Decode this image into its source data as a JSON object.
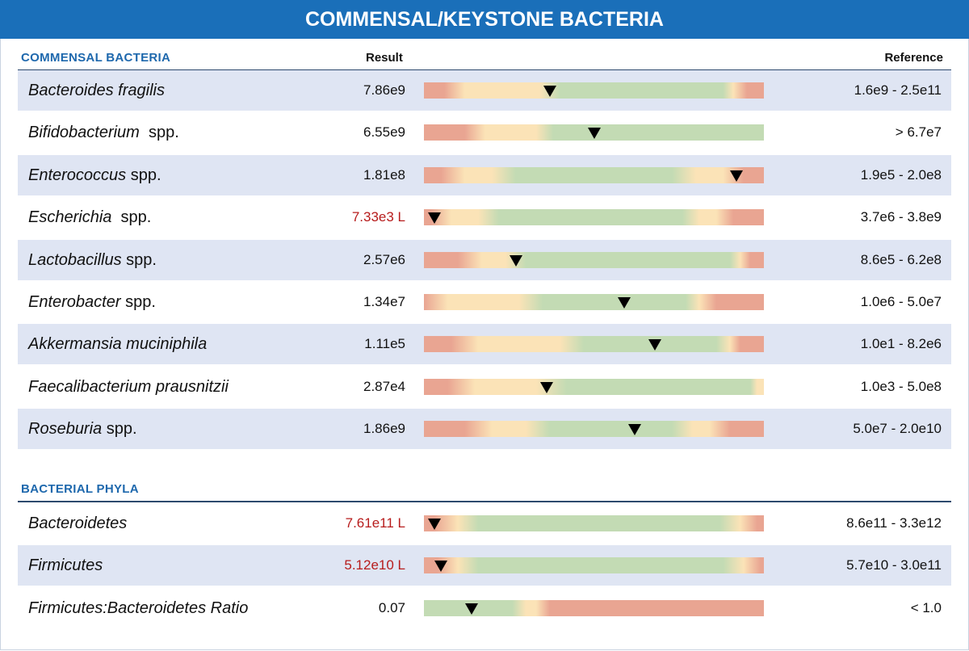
{
  "title": "COMMENSAL/KEYSTONE BACTERIA",
  "colors": {
    "red": "#e9a592",
    "yellow": "#fbe3b7",
    "green": "#c3dbb4",
    "header_blue": "#1a6fb9",
    "low_text": "#b71c1c"
  },
  "sections": [
    {
      "title": "COMMENSAL BACTERIA",
      "result_header": "Result",
      "reference_header": "Reference",
      "rows": [
        {
          "name_italic": "Bacteroides fragilis",
          "name_rest": "",
          "result": "7.86e9",
          "low": false,
          "reference": "1.6e9 - 2.5e11",
          "marker": 0.37,
          "stops": [
            [
              "red",
              0
            ],
            [
              "red",
              0.06
            ],
            [
              "yellow",
              0.12
            ],
            [
              "yellow",
              0.34
            ],
            [
              "green",
              0.4
            ],
            [
              "green",
              0.88
            ],
            [
              "yellow",
              0.91
            ],
            [
              "red",
              0.95
            ],
            [
              "red",
              1
            ]
          ]
        },
        {
          "name_italic": "Bifidobacterium",
          "name_rest": "  spp.",
          "result": "6.55e9",
          "low": false,
          "reference": "> 6.7e7",
          "marker": 0.5,
          "stops": [
            [
              "red",
              0
            ],
            [
              "red",
              0.12
            ],
            [
              "yellow",
              0.18
            ],
            [
              "yellow",
              0.33
            ],
            [
              "green",
              0.38
            ],
            [
              "green",
              1
            ]
          ]
        },
        {
          "name_italic": "Enterococcus",
          "name_rest": " spp.",
          "result": "1.81e8",
          "low": false,
          "reference": "1.9e5 - 2.0e8",
          "marker": 0.92,
          "stops": [
            [
              "red",
              0
            ],
            [
              "red",
              0.05
            ],
            [
              "yellow",
              0.12
            ],
            [
              "yellow",
              0.2
            ],
            [
              "green",
              0.27
            ],
            [
              "green",
              0.73
            ],
            [
              "yellow",
              0.8
            ],
            [
              "yellow",
              0.88
            ],
            [
              "red",
              0.94
            ],
            [
              "red",
              1
            ]
          ]
        },
        {
          "name_italic": "Escherichia",
          "name_rest": "  spp.",
          "result": "7.33e3 L",
          "low": true,
          "reference": "3.7e6 - 3.8e9",
          "marker": 0.03,
          "stops": [
            [
              "red",
              0
            ],
            [
              "red",
              0.02
            ],
            [
              "yellow",
              0.08
            ],
            [
              "yellow",
              0.16
            ],
            [
              "green",
              0.22
            ],
            [
              "green",
              0.76
            ],
            [
              "yellow",
              0.81
            ],
            [
              "yellow",
              0.86
            ],
            [
              "red",
              0.91
            ],
            [
              "red",
              1
            ]
          ]
        },
        {
          "name_italic": "Lactobacillus",
          "name_rest": " spp.",
          "result": "2.57e6",
          "low": false,
          "reference": "8.6e5 - 6.2e8",
          "marker": 0.27,
          "stops": [
            [
              "red",
              0
            ],
            [
              "red",
              0.1
            ],
            [
              "yellow",
              0.17
            ],
            [
              "yellow",
              0.24
            ],
            [
              "green",
              0.3
            ],
            [
              "green",
              0.9
            ],
            [
              "yellow",
              0.93
            ],
            [
              "red",
              0.96
            ],
            [
              "red",
              1
            ]
          ]
        },
        {
          "name_italic": "Enterobacter",
          "name_rest": " spp.",
          "result": "1.34e7",
          "low": false,
          "reference": "1.0e6 - 5.0e7",
          "marker": 0.59,
          "stops": [
            [
              "red",
              0
            ],
            [
              "yellow",
              0.07
            ],
            [
              "yellow",
              0.28
            ],
            [
              "green",
              0.35
            ],
            [
              "green",
              0.77
            ],
            [
              "yellow",
              0.81
            ],
            [
              "red",
              0.86
            ],
            [
              "red",
              1
            ]
          ]
        },
        {
          "name_italic": "Akkermansia muciniphila",
          "name_rest": "",
          "result": "1.11e5",
          "low": false,
          "reference": "1.0e1 - 8.2e6",
          "marker": 0.68,
          "stops": [
            [
              "red",
              0
            ],
            [
              "red",
              0.08
            ],
            [
              "yellow",
              0.16
            ],
            [
              "yellow",
              0.4
            ],
            [
              "green",
              0.47
            ],
            [
              "green",
              0.86
            ],
            [
              "yellow",
              0.9
            ],
            [
              "red",
              0.93
            ],
            [
              "red",
              1
            ]
          ]
        },
        {
          "name_italic": "Faecalibacterium prausnitzii",
          "name_rest": "",
          "result": "2.87e4",
          "low": false,
          "reference": "1.0e3 - 5.0e8",
          "marker": 0.36,
          "stops": [
            [
              "red",
              0
            ],
            [
              "red",
              0.07
            ],
            [
              "yellow",
              0.15
            ],
            [
              "yellow",
              0.33
            ],
            [
              "green",
              0.42
            ],
            [
              "green",
              0.96
            ],
            [
              "yellow",
              0.98
            ],
            [
              "yellow",
              1
            ]
          ]
        },
        {
          "name_italic": "Roseburia",
          "name_rest": " spp.",
          "result": "1.86e9",
          "low": false,
          "reference": "5.0e7 - 2.0e10",
          "marker": 0.62,
          "stops": [
            [
              "red",
              0
            ],
            [
              "red",
              0.12
            ],
            [
              "yellow",
              0.2
            ],
            [
              "yellow",
              0.3
            ],
            [
              "green",
              0.37
            ],
            [
              "green",
              0.73
            ],
            [
              "yellow",
              0.79
            ],
            [
              "yellow",
              0.84
            ],
            [
              "red",
              0.9
            ],
            [
              "red",
              1
            ]
          ]
        }
      ]
    },
    {
      "title": "BACTERIAL PHYLA",
      "rows": [
        {
          "name_italic": "Bacteroidetes",
          "name_rest": "",
          "result": "7.61e11 L",
          "low": true,
          "reference": "8.6e11 - 3.3e12",
          "marker": 0.03,
          "stops": [
            [
              "red",
              0
            ],
            [
              "red",
              0.03
            ],
            [
              "yellow",
              0.1
            ],
            [
              "green",
              0.16
            ],
            [
              "green",
              0.87
            ],
            [
              "yellow",
              0.93
            ],
            [
              "red",
              0.98
            ],
            [
              "red",
              1
            ]
          ]
        },
        {
          "name_italic": "Firmicutes",
          "name_rest": "",
          "result": "5.12e10 L",
          "low": true,
          "reference": "5.7e10 - 3.0e11",
          "marker": 0.05,
          "stops": [
            [
              "red",
              0
            ],
            [
              "red",
              0.04
            ],
            [
              "yellow",
              0.1
            ],
            [
              "green",
              0.16
            ],
            [
              "green",
              0.88
            ],
            [
              "yellow",
              0.94
            ],
            [
              "red",
              0.99
            ],
            [
              "red",
              1
            ]
          ]
        },
        {
          "name_italic": "Firmicutes:Bacteroidetes Ratio",
          "name_rest": "",
          "result": "0.07",
          "low": false,
          "reference": "< 1.0",
          "marker": 0.14,
          "stops": [
            [
              "green",
              0
            ],
            [
              "green",
              0.26
            ],
            [
              "yellow",
              0.3
            ],
            [
              "yellow",
              0.33
            ],
            [
              "red",
              0.37
            ],
            [
              "red",
              1
            ]
          ]
        }
      ]
    }
  ]
}
